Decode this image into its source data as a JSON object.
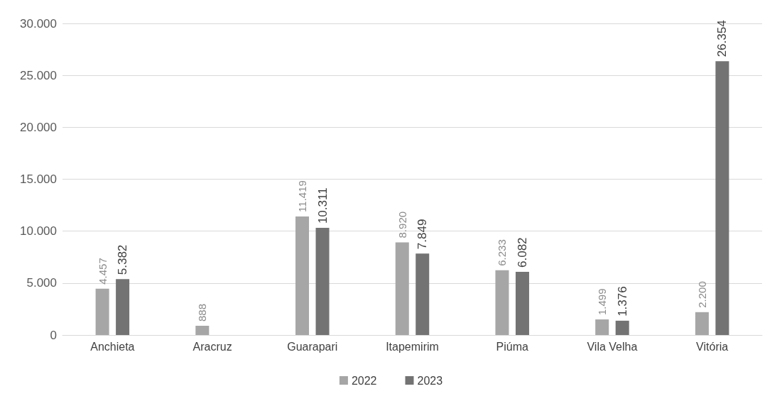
{
  "chart_data": {
    "type": "bar",
    "categories": [
      "Anchieta",
      "Aracruz",
      "Guarapari",
      "Itapemirim",
      "Piúma",
      "Vila Velha",
      "Vitória"
    ],
    "series": [
      {
        "name": "2022",
        "color": "#a6a6a6",
        "values": [
          4457,
          888,
          11419,
          8920,
          6233,
          1499,
          2200
        ],
        "value_labels": [
          "4.457",
          "888",
          "11.419",
          "8.920",
          "6.233",
          "1.499",
          "2.200"
        ]
      },
      {
        "name": "2023",
        "color": "#737373",
        "values": [
          5382,
          null,
          10311,
          7849,
          6082,
          1376,
          26354
        ],
        "value_labels": [
          "5.382",
          null,
          "10.311",
          "7.849",
          "6.082",
          "1.376",
          "26.354"
        ]
      }
    ],
    "ylim": [
      0,
      30000
    ],
    "yticks": [
      0,
      {
        "value": 5000,
        "label": "5.000"
      },
      {
        "value": 10000,
        "label": "10.000"
      },
      {
        "value": 15000,
        "label": "15.000"
      },
      {
        "value": 20000,
        "label": "20.000"
      },
      {
        "value": 25000,
        "label": "25.000"
      },
      {
        "value": 30000,
        "label": "30.000"
      }
    ],
    "grid": "y",
    "legend": "bottom"
  }
}
